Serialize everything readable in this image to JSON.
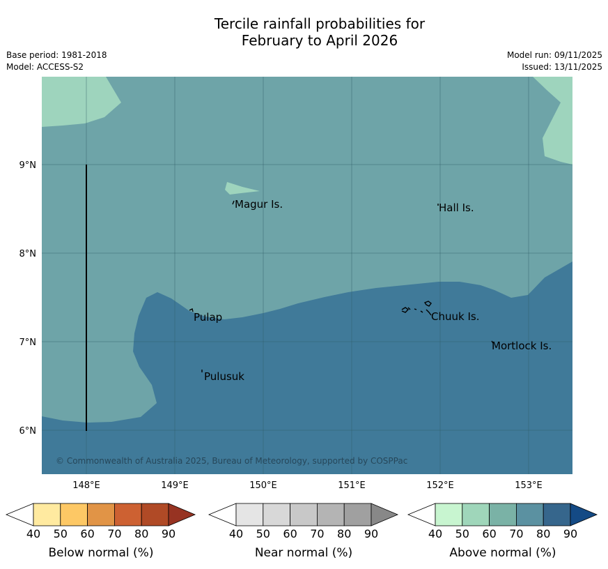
{
  "title": {
    "line1": "Tercile rainfall probabilities for",
    "line2": "February to April 2026"
  },
  "meta": {
    "base_period": "Base period: 1981-2018",
    "model": "Model: ACCESS-S2",
    "model_run": "Model run: 09/11/2025",
    "issued": "Issued: 13/11/2025"
  },
  "map": {
    "region_category": "Above normal",
    "region_probability_band": "60-70",
    "south_probability_band": "70-80",
    "lat_labels": [
      "9°N",
      "8°N",
      "7°N",
      "6°N"
    ],
    "lon_labels": [
      "148°E",
      "149°E",
      "150°E",
      "151°E",
      "152°E",
      "153°E"
    ],
    "islands": [
      {
        "name": "Magur Is."
      },
      {
        "name": "Hall Is."
      },
      {
        "name": "Pulap"
      },
      {
        "name": "Chuuk Is."
      },
      {
        "name": "Mortlock Is."
      },
      {
        "name": "Pulusuk"
      }
    ],
    "copyright": "© Commonwealth of Australia 2025, Bureau of Meteorology, supported by COSPPac"
  },
  "colorbars": [
    {
      "label": "Below normal (%)",
      "ticks": [
        "40",
        "50",
        "60",
        "70",
        "80",
        "90"
      ],
      "colors": [
        "#ffffff",
        "#ffeaa0",
        "#fdc865",
        "#e19446",
        "#cd6132",
        "#b04a26",
        "#973322"
      ]
    },
    {
      "label": "Near normal (%)",
      "ticks": [
        "40",
        "50",
        "60",
        "70",
        "80",
        "90"
      ],
      "colors": [
        "#ffffff",
        "#e5e5e5",
        "#d8d8d8",
        "#c8c8c8",
        "#b4b4b4",
        "#a0a0a0",
        "#888888"
      ]
    },
    {
      "label": "Above normal (%)",
      "ticks": [
        "40",
        "50",
        "60",
        "70",
        "80",
        "90"
      ],
      "colors": [
        "#ffffff",
        "#c8f5d0",
        "#9fd6ba",
        "#7ab2a6",
        "#5b91a1",
        "#36668c",
        "#144a85"
      ]
    }
  ]
}
